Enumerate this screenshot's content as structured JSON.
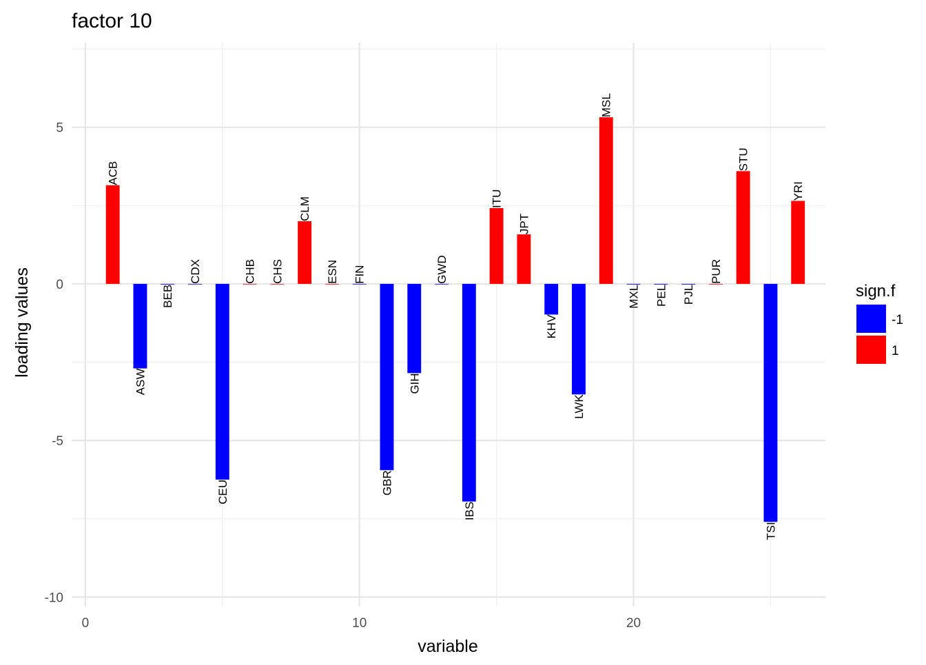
{
  "chart_data": {
    "type": "bar",
    "title": "factor 10",
    "xlabel": "variable",
    "ylabel": "loading values",
    "xlim": [
      -0.5,
      27
    ],
    "ylim": [
      -10.3,
      7.7
    ],
    "x_ticks": [
      0,
      10,
      20
    ],
    "y_ticks": [
      5,
      0,
      -5,
      -10
    ],
    "x_minor_ticks": [
      5,
      15,
      25
    ],
    "y_minor_ticks": [
      7.5,
      2.5,
      -2.5,
      -7.5
    ],
    "grid": true,
    "legend": {
      "title": "sign.f",
      "position": "right",
      "entries": [
        {
          "label": "-1",
          "color": "#0000ff"
        },
        {
          "label": "1",
          "color": "#ff0000"
        }
      ]
    },
    "colors": {
      "-1": "#0000ff",
      "1": "#ff0000"
    },
    "bars": [
      {
        "x": 1,
        "label": "ACB",
        "value": 3.15,
        "sign": "1"
      },
      {
        "x": 2,
        "label": "ASW",
        "value": -2.7,
        "sign": "-1"
      },
      {
        "x": 3,
        "label": "BEB",
        "value": -0.02,
        "sign": "-1"
      },
      {
        "x": 4,
        "label": "CDX",
        "value": 0.0,
        "sign": "-1"
      },
      {
        "x": 5,
        "label": "CEU",
        "value": -6.25,
        "sign": "-1"
      },
      {
        "x": 6,
        "label": "CHB",
        "value": 0.0,
        "sign": "1"
      },
      {
        "x": 7,
        "label": "CHS",
        "value": 0.0,
        "sign": "1"
      },
      {
        "x": 8,
        "label": "CLM",
        "value": 2.0,
        "sign": "1"
      },
      {
        "x": 9,
        "label": "ESN",
        "value": 0.0,
        "sign": "1"
      },
      {
        "x": 10,
        "label": "FIN",
        "value": 0.0,
        "sign": "-1"
      },
      {
        "x": 11,
        "label": "GBR",
        "value": -5.95,
        "sign": "-1"
      },
      {
        "x": 12,
        "label": "GIH",
        "value": -2.85,
        "sign": "-1"
      },
      {
        "x": 13,
        "label": "GWD",
        "value": 0.0,
        "sign": "-1"
      },
      {
        "x": 14,
        "label": "IBS",
        "value": -6.95,
        "sign": "-1"
      },
      {
        "x": 15,
        "label": "ITU",
        "value": 2.42,
        "sign": "1"
      },
      {
        "x": 16,
        "label": "JPT",
        "value": 1.58,
        "sign": "1"
      },
      {
        "x": 17,
        "label": "KHV",
        "value": -0.98,
        "sign": "-1"
      },
      {
        "x": 18,
        "label": "LWK",
        "value": -3.53,
        "sign": "-1"
      },
      {
        "x": 19,
        "label": "MSL",
        "value": 5.32,
        "sign": "1"
      },
      {
        "x": 20,
        "label": "MXL",
        "value": -0.02,
        "sign": "-1"
      },
      {
        "x": 21,
        "label": "PEL",
        "value": -0.02,
        "sign": "-1"
      },
      {
        "x": 22,
        "label": "PJL",
        "value": -0.02,
        "sign": "-1"
      },
      {
        "x": 23,
        "label": "PUR",
        "value": 0.0,
        "sign": "1"
      },
      {
        "x": 24,
        "label": "STU",
        "value": 3.6,
        "sign": "1"
      },
      {
        "x": 25,
        "label": "TSI",
        "value": -7.6,
        "sign": "-1"
      },
      {
        "x": 26,
        "label": "YRI",
        "value": 2.65,
        "sign": "1"
      }
    ]
  }
}
